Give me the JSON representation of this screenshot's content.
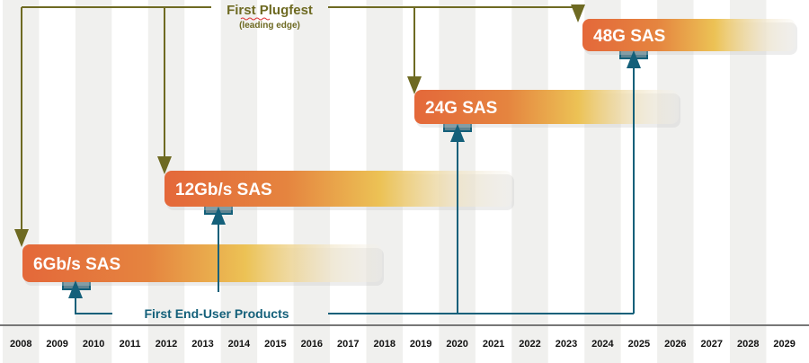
{
  "years": [
    "2008",
    "2009",
    "2010",
    "2011",
    "2012",
    "2013",
    "2014",
    "2015",
    "2016",
    "2017",
    "2018",
    "2019",
    "2020",
    "2021",
    "2022",
    "2023",
    "2024",
    "2025",
    "2026",
    "2027",
    "2028",
    "2029"
  ],
  "plugfest": {
    "title": "First Plugfest",
    "subtitle": "(leading edge)"
  },
  "end_user": {
    "title": "First End-User Products"
  },
  "generations": [
    {
      "label": "6Gb/s SAS",
      "plugfest_year": "2008",
      "product_year": "2010"
    },
    {
      "label": "12Gb/s SAS",
      "plugfest_year": "2012",
      "product_year": "2014"
    },
    {
      "label": "24G SAS",
      "plugfest_year": "2019",
      "product_year": "2020"
    },
    {
      "label": "48G SAS",
      "plugfest_year": "2024",
      "product_year": "2025"
    }
  ],
  "colors": {
    "olive": "#6e6a22",
    "teal": "#14607a",
    "orange": "#e4683a",
    "gold": "#ecc255",
    "stripe": "#f0f0ee"
  }
}
